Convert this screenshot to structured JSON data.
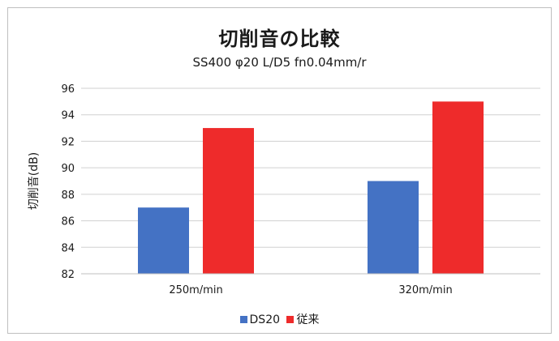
{
  "chart_data": {
    "type": "bar",
    "title": "切削音の比較",
    "subtitle": "SS400 φ20 L/D5 fn0.04mm/r",
    "xlabel": "",
    "ylabel": "切削音(dB)",
    "categories": [
      "250m/min",
      "320m/min"
    ],
    "series": [
      {
        "name": "DS20",
        "values": [
          87,
          89
        ],
        "color": "#4472c4"
      },
      {
        "name": "従来",
        "values": [
          93,
          95
        ],
        "color": "#ee2b2b"
      }
    ],
    "ylim": [
      82,
      96
    ],
    "yticks": [
      82,
      84,
      86,
      88,
      90,
      92,
      94,
      96
    ],
    "grid": true,
    "legend_position": "bottom"
  }
}
